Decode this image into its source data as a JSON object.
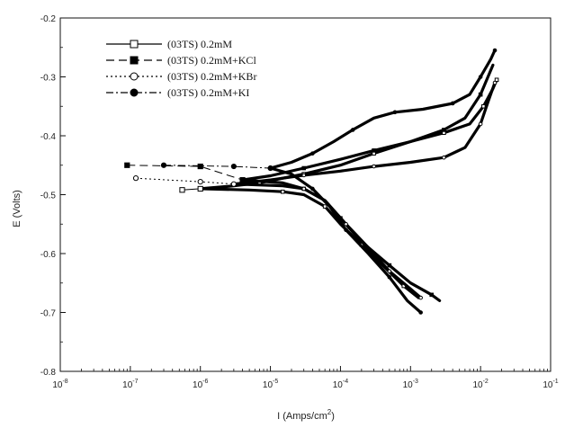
{
  "chart_data": {
    "type": "line",
    "title": "",
    "x_scale": "log",
    "xlim": [
      1e-08,
      0.1
    ],
    "ylim": [
      -0.8,
      -0.2
    ],
    "xlabel": {
      "base": "I (Amps/cm",
      "sup": "2",
      "tail": ")"
    },
    "ylabel": "E (Volts)",
    "x_ticks": [
      {
        "value": 1e-08,
        "base": "10",
        "exp": "-8"
      },
      {
        "value": 1e-07,
        "base": "10",
        "exp": "-7"
      },
      {
        "value": 1e-06,
        "base": "10",
        "exp": "-6"
      },
      {
        "value": 1e-05,
        "base": "10",
        "exp": "-5"
      },
      {
        "value": 0.0001,
        "base": "10",
        "exp": "-4"
      },
      {
        "value": 0.001,
        "base": "10",
        "exp": "-3"
      },
      {
        "value": 0.01,
        "base": "10",
        "exp": "-2"
      },
      {
        "value": 0.1,
        "base": "10",
        "exp": "-1"
      }
    ],
    "y_ticks": [
      {
        "value": -0.2,
        "label": "-0.2"
      },
      {
        "value": -0.3,
        "label": "-0.3"
      },
      {
        "value": -0.4,
        "label": "-0.4"
      },
      {
        "value": -0.5,
        "label": "-0.5"
      },
      {
        "value": -0.6,
        "label": "-0.6"
      },
      {
        "value": -0.7,
        "label": "-0.7"
      },
      {
        "value": -0.8,
        "label": "-0.8"
      }
    ],
    "grid": false,
    "legend_position": "top-left",
    "series": [
      {
        "name": "(03TS) 0.2mM",
        "marker": "open-square",
        "line_style": "solid",
        "anodic": [
          [
            1e-06,
            -0.49
          ],
          [
            3e-06,
            -0.485
          ],
          [
            7e-06,
            -0.48
          ],
          [
            1.5e-05,
            -0.472
          ],
          [
            3e-05,
            -0.465
          ],
          [
            0.0001,
            -0.45
          ],
          [
            0.0003,
            -0.43
          ],
          [
            0.001,
            -0.41
          ],
          [
            0.003,
            -0.395
          ],
          [
            0.007,
            -0.38
          ],
          [
            0.011,
            -0.35
          ],
          [
            0.015,
            -0.32
          ],
          [
            0.017,
            -0.305
          ]
        ],
        "cathodic": [
          [
            1e-06,
            -0.49
          ],
          [
            5e-06,
            -0.492
          ],
          [
            1.5e-05,
            -0.495
          ],
          [
            3e-05,
            -0.5
          ],
          [
            6e-05,
            -0.52
          ],
          [
            0.0001,
            -0.55
          ],
          [
            0.0002,
            -0.585
          ],
          [
            0.0004,
            -0.62
          ],
          [
            0.0008,
            -0.655
          ],
          [
            0.0013,
            -0.675
          ]
        ],
        "stub": [
          [
            5.5e-07,
            -0.492
          ],
          [
            1e-06,
            -0.49
          ]
        ]
      },
      {
        "name": "(03TS) 0.2mM+KCl",
        "marker": "filled-square",
        "line_style": "dash",
        "anodic": [
          [
            4e-06,
            -0.475
          ],
          [
            1e-05,
            -0.468
          ],
          [
            3e-05,
            -0.455
          ],
          [
            0.0001,
            -0.44
          ],
          [
            0.0003,
            -0.425
          ],
          [
            0.001,
            -0.41
          ],
          [
            0.003,
            -0.39
          ],
          [
            0.006,
            -0.37
          ],
          [
            0.01,
            -0.33
          ],
          [
            0.015,
            -0.28
          ]
        ],
        "cathodic": [
          [
            4e-06,
            -0.475
          ],
          [
            1.5e-05,
            -0.48
          ],
          [
            3e-05,
            -0.49
          ],
          [
            6e-05,
            -0.51
          ],
          [
            0.0001,
            -0.54
          ],
          [
            0.0002,
            -0.58
          ],
          [
            0.0005,
            -0.62
          ],
          [
            0.001,
            -0.65
          ],
          [
            0.002,
            -0.67
          ],
          [
            0.0026,
            -0.68
          ]
        ],
        "stub": [
          [
            9e-08,
            -0.45
          ],
          [
            1e-06,
            -0.452
          ],
          [
            4e-06,
            -0.475
          ]
        ]
      },
      {
        "name": "(03TS) 0.2mM+KBr",
        "marker": "open-circle",
        "line_style": "dot",
        "anodic": [
          [
            3e-06,
            -0.482
          ],
          [
            1e-05,
            -0.475
          ],
          [
            3e-05,
            -0.467
          ],
          [
            0.0001,
            -0.46
          ],
          [
            0.0003,
            -0.452
          ],
          [
            0.001,
            -0.445
          ],
          [
            0.003,
            -0.437
          ],
          [
            0.006,
            -0.42
          ],
          [
            0.01,
            -0.38
          ],
          [
            0.013,
            -0.34
          ],
          [
            0.016,
            -0.31
          ]
        ],
        "cathodic": [
          [
            3e-06,
            -0.482
          ],
          [
            1.5e-05,
            -0.485
          ],
          [
            3e-05,
            -0.49
          ],
          [
            6e-05,
            -0.51
          ],
          [
            0.00012,
            -0.55
          ],
          [
            0.00025,
            -0.59
          ],
          [
            0.0005,
            -0.63
          ],
          [
            0.001,
            -0.66
          ],
          [
            0.0014,
            -0.675
          ]
        ],
        "stub": [
          [
            1.2e-07,
            -0.472
          ],
          [
            1e-06,
            -0.478
          ],
          [
            3e-06,
            -0.482
          ]
        ]
      },
      {
        "name": "(03TS) 0.2mM+KI",
        "marker": "filled-circle",
        "line_style": "dash-dot",
        "anodic": [
          [
            1e-05,
            -0.455
          ],
          [
            2e-05,
            -0.445
          ],
          [
            4e-05,
            -0.43
          ],
          [
            8e-05,
            -0.41
          ],
          [
            0.00015,
            -0.39
          ],
          [
            0.0003,
            -0.37
          ],
          [
            0.0006,
            -0.36
          ],
          [
            0.0015,
            -0.355
          ],
          [
            0.004,
            -0.345
          ],
          [
            0.007,
            -0.33
          ],
          [
            0.01,
            -0.3
          ],
          [
            0.014,
            -0.27
          ],
          [
            0.016,
            -0.255
          ]
        ],
        "cathodic": [
          [
            1e-05,
            -0.455
          ],
          [
            2e-05,
            -0.465
          ],
          [
            4e-05,
            -0.49
          ],
          [
            7e-05,
            -0.52
          ],
          [
            0.00012,
            -0.56
          ],
          [
            0.00025,
            -0.6
          ],
          [
            0.0005,
            -0.64
          ],
          [
            0.0009,
            -0.68
          ],
          [
            0.0014,
            -0.7
          ]
        ],
        "stub": [
          [
            3e-07,
            -0.45
          ],
          [
            3e-06,
            -0.452
          ],
          [
            1e-05,
            -0.455
          ]
        ]
      }
    ]
  }
}
